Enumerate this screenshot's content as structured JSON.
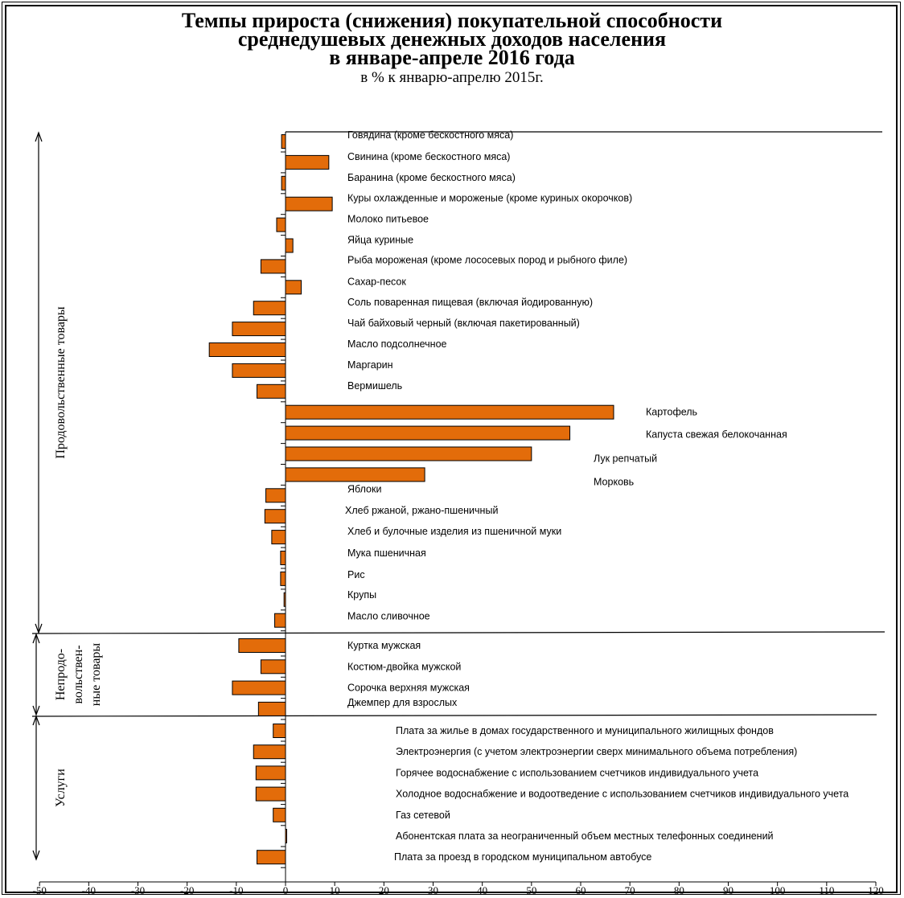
{
  "chart_data": {
    "type": "bar",
    "orientation": "horizontal",
    "title_lines": [
      "Темпы прироста (снижения) покупательной способности",
      "среднедушевых денежных доходов населения",
      "в январе-апреле 2016 года"
    ],
    "subtitle": "в % к январю-апрелю 2015г.",
    "xlim": [
      -50,
      120
    ],
    "xticks": [
      -50,
      -40,
      -30,
      -20,
      -10,
      0,
      10,
      20,
      30,
      40,
      50,
      60,
      70,
      80,
      90,
      100,
      110,
      120
    ],
    "bar_color": "#E36C0A",
    "groups": [
      {
        "name": "Продовольственные товары",
        "items": [
          {
            "label": "Говядина (кроме бескостного мяса)",
            "value": -0.8
          },
          {
            "label": "Свинина (кроме бескостного мяса)",
            "value": 8.8
          },
          {
            "label": "Баранина (кроме бескостного мяса)",
            "value": -0.8
          },
          {
            "label": "Куры охлажденные и мороженые (кроме куриных окорочков)",
            "value": 9.5
          },
          {
            "label": "Молоко питьевое",
            "value": -1.8
          },
          {
            "label": "Яйца куриные",
            "value": 1.5
          },
          {
            "label": "Рыба мороженая (кроме лососевых пород и рыбного филе)",
            "value": -5.0
          },
          {
            "label": "Сахар-песок",
            "value": 3.2
          },
          {
            "label": "Соль поваренная пищевая (включая йодированную)",
            "value": -6.5
          },
          {
            "label": "Чай байховый черный  (включая пакетированный)",
            "value": -10.8
          },
          {
            "label": "Масло подсолнечное",
            "value": -15.5
          },
          {
            "label": "Маргарин",
            "value": -10.8
          },
          {
            "label": "Вермишель",
            "value": -5.8
          },
          {
            "label": "Картофель",
            "value": 66.7
          },
          {
            "label": "Капуста свежая белокочанная",
            "value": 57.8
          },
          {
            "label": "Лук репчатый",
            "value": 50.0
          },
          {
            "label": "Морковь",
            "value": 28.3
          },
          {
            "label": "Яблоки",
            "value": -4.0
          },
          {
            "label": "Хлеб ржаной, ржано-пшеничный",
            "value": -4.2
          },
          {
            "label": "Хлеб и булочные изделия из пшеничной муки",
            "value": -2.8
          },
          {
            "label": "Мука пшеничная",
            "value": -1.0
          },
          {
            "label": "Рис",
            "value": -1.0
          },
          {
            "label": "Крупы",
            "value": -0.3
          },
          {
            "label": "Масло сливочное",
            "value": -2.2
          }
        ]
      },
      {
        "name": "Непродо-\nвольствен-\nные товары",
        "items": [
          {
            "label": "Куртка мужская",
            "value": -9.5
          },
          {
            "label": "Костюм-двойка  мужской",
            "value": -5.0
          },
          {
            "label": "Сорочка верхняя мужская",
            "value": -10.8
          },
          {
            "label": "Джемпер для взрослых",
            "value": -5.5
          }
        ]
      },
      {
        "name": "Услуги",
        "items": [
          {
            "label": "Плата за жилье в домах государственного и муниципального жилищных фондов",
            "value": -2.5
          },
          {
            "label": "Электроэнергия (с учетом электроэнергии сверх минимального объема потребления)",
            "value": -6.5
          },
          {
            "label": "Горячее водоснабжение с использованием счетчиков индивидуального учета",
            "value": -6.0
          },
          {
            "label": "Холодное водоснабжение и водоотведение с использованием счетчиков индивидуального учета",
            "value": -6.0
          },
          {
            "label": "Газ сетевой",
            "value": -2.5
          },
          {
            "label": "Абонентская плата за неограниченный объем местных телефонных соединений",
            "value": 0.2
          },
          {
            "label": "Плата за проезд в городском муниципальном автобусе",
            "value": -5.8
          }
        ]
      }
    ]
  }
}
